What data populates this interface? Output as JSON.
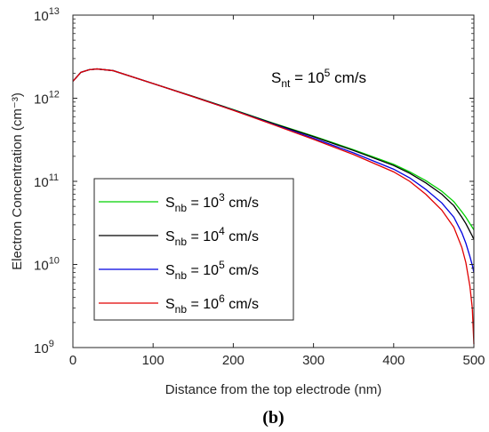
{
  "chart_data": {
    "type": "line",
    "xlabel": "Distance from the top electrode (nm)",
    "ylabel": "Electron Concentration (cm⁻³)",
    "xlim": [
      0,
      500
    ],
    "ylim": [
      1000000000.0,
      10000000000000.0
    ],
    "yscale": "log",
    "grid": false,
    "legend_position": "bottom-left",
    "x_ticks": [
      0,
      100,
      200,
      300,
      400,
      500
    ],
    "x_tick_labels": [
      "0",
      "100",
      "200",
      "300",
      "400",
      "500"
    ],
    "y_ticks": [
      1000000000.0,
      10000000000.0,
      100000000000.0,
      1000000000000.0,
      10000000000000.0
    ],
    "y_tick_bases": [
      "10",
      "10",
      "10",
      "10",
      "10"
    ],
    "y_tick_exponents": [
      "9",
      "10",
      "11",
      "12",
      "13"
    ],
    "annotation": {
      "text": "S",
      "subscript": "nt",
      "mid": " = 10",
      "superscript": "5",
      "tail": " cm/s"
    },
    "x": [
      0,
      10,
      20,
      30,
      50,
      100,
      150,
      200,
      250,
      300,
      350,
      400,
      420,
      440,
      460,
      475,
      485,
      490,
      495,
      498,
      500
    ],
    "series": [
      {
        "name": "S_nb = 10^3 cm/s",
        "label_parts": {
          "text": "S",
          "subscript": "nb",
          "mid": " = 10",
          "superscript": "3",
          "tail": " cm/s"
        },
        "color": "#00d000",
        "values": [
          1600000000000.0,
          2050000000000.0,
          2200000000000.0,
          2250000000000.0,
          2150000000000.0,
          1500000000000.0,
          1050000000000.0,
          730000000000.0,
          500000000000.0,
          350000000000.0,
          240000000000.0,
          160000000000.0,
          130000000000.0,
          102000000000.0,
          76000000000.0,
          57000000000.0,
          43000000000.0,
          37000000000.0,
          31000000000.0,
          28000000000.0,
          26000000000.0
        ]
      },
      {
        "name": "S_nb = 10^4 cm/s",
        "label_parts": {
          "text": "S",
          "subscript": "nb",
          "mid": " = 10",
          "superscript": "4",
          "tail": " cm/s"
        },
        "color": "#000000",
        "values": [
          1600000000000.0,
          2050000000000.0,
          2200000000000.0,
          2250000000000.0,
          2150000000000.0,
          1500000000000.0,
          1050000000000.0,
          725000000000.0,
          495000000000.0,
          345000000000.0,
          235000000000.0,
          155000000000.0,
          125000000000.0,
          96000000000.0,
          70000000000.0,
          51000000000.0,
          37000000000.0,
          31000000000.0,
          25000000000.0,
          22000000000.0,
          20000000000.0
        ]
      },
      {
        "name": "S_nb = 10^5 cm/s",
        "label_parts": {
          "text": "S",
          "subscript": "nb",
          "mid": " = 10",
          "superscript": "5",
          "tail": " cm/s"
        },
        "color": "#0000e0",
        "values": [
          1600000000000.0,
          2050000000000.0,
          2200000000000.0,
          2250000000000.0,
          2150000000000.0,
          1500000000000.0,
          1040000000000.0,
          720000000000.0,
          485000000000.0,
          330000000000.0,
          220000000000.0,
          140000000000.0,
          110000000000.0,
          80000000000.0,
          55000000000.0,
          37000000000.0,
          24000000000.0,
          18000000000.0,
          12500000000.0,
          9800000000.0,
          8000000000.0
        ]
      },
      {
        "name": "S_nb = 10^6 cm/s",
        "label_parts": {
          "text": "S",
          "subscript": "nb",
          "mid": " = 10",
          "superscript": "6",
          "tail": " cm/s"
        },
        "color": "#e00000",
        "values": [
          1600000000000.0,
          2050000000000.0,
          2200000000000.0,
          2250000000000.0,
          2150000000000.0,
          1500000000000.0,
          1040000000000.0,
          715000000000.0,
          480000000000.0,
          320000000000.0,
          210000000000.0,
          130000000000.0,
          100000000000.0,
          70000000000.0,
          45000000000.0,
          28000000000.0,
          16000000000.0,
          10500000000.0,
          5500000000.0,
          3000000000.0,
          1100000000.0
        ]
      }
    ]
  },
  "caption": "(b)"
}
